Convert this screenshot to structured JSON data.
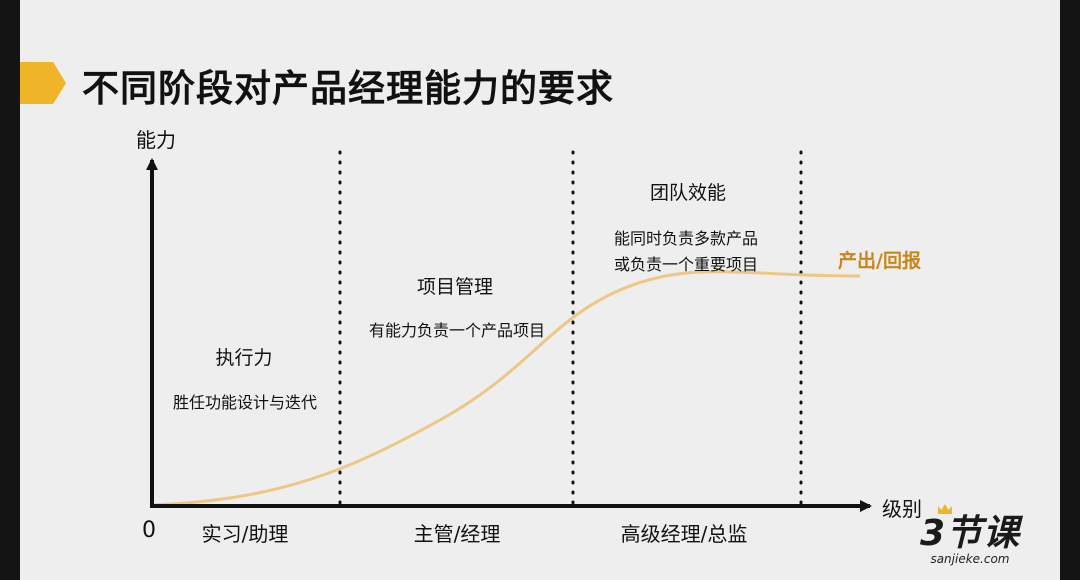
{
  "title": "不同阶段对产品经理能力的要求",
  "axes": {
    "y_label": "能力",
    "x_label": "级别",
    "origin": "0"
  },
  "levels": [
    "实习/助理",
    "主管/经理",
    "高级经理/总监"
  ],
  "stages": [
    {
      "title": "执行力",
      "desc": "胜任功能设计与迭代"
    },
    {
      "title": "项目管理",
      "desc": "有能力负责一个产品项目"
    },
    {
      "title": "团队效能",
      "desc_lines": [
        "能同时负责多款产品",
        "或负责一个重要项目"
      ]
    }
  ],
  "curve_label": "产出/回报",
  "colors": {
    "accent": "#f0b429",
    "curve": "#eec784",
    "curve_label": "#c8871a"
  },
  "watermark": {
    "logo": "3节课",
    "site": "sanjieke.com"
  }
}
